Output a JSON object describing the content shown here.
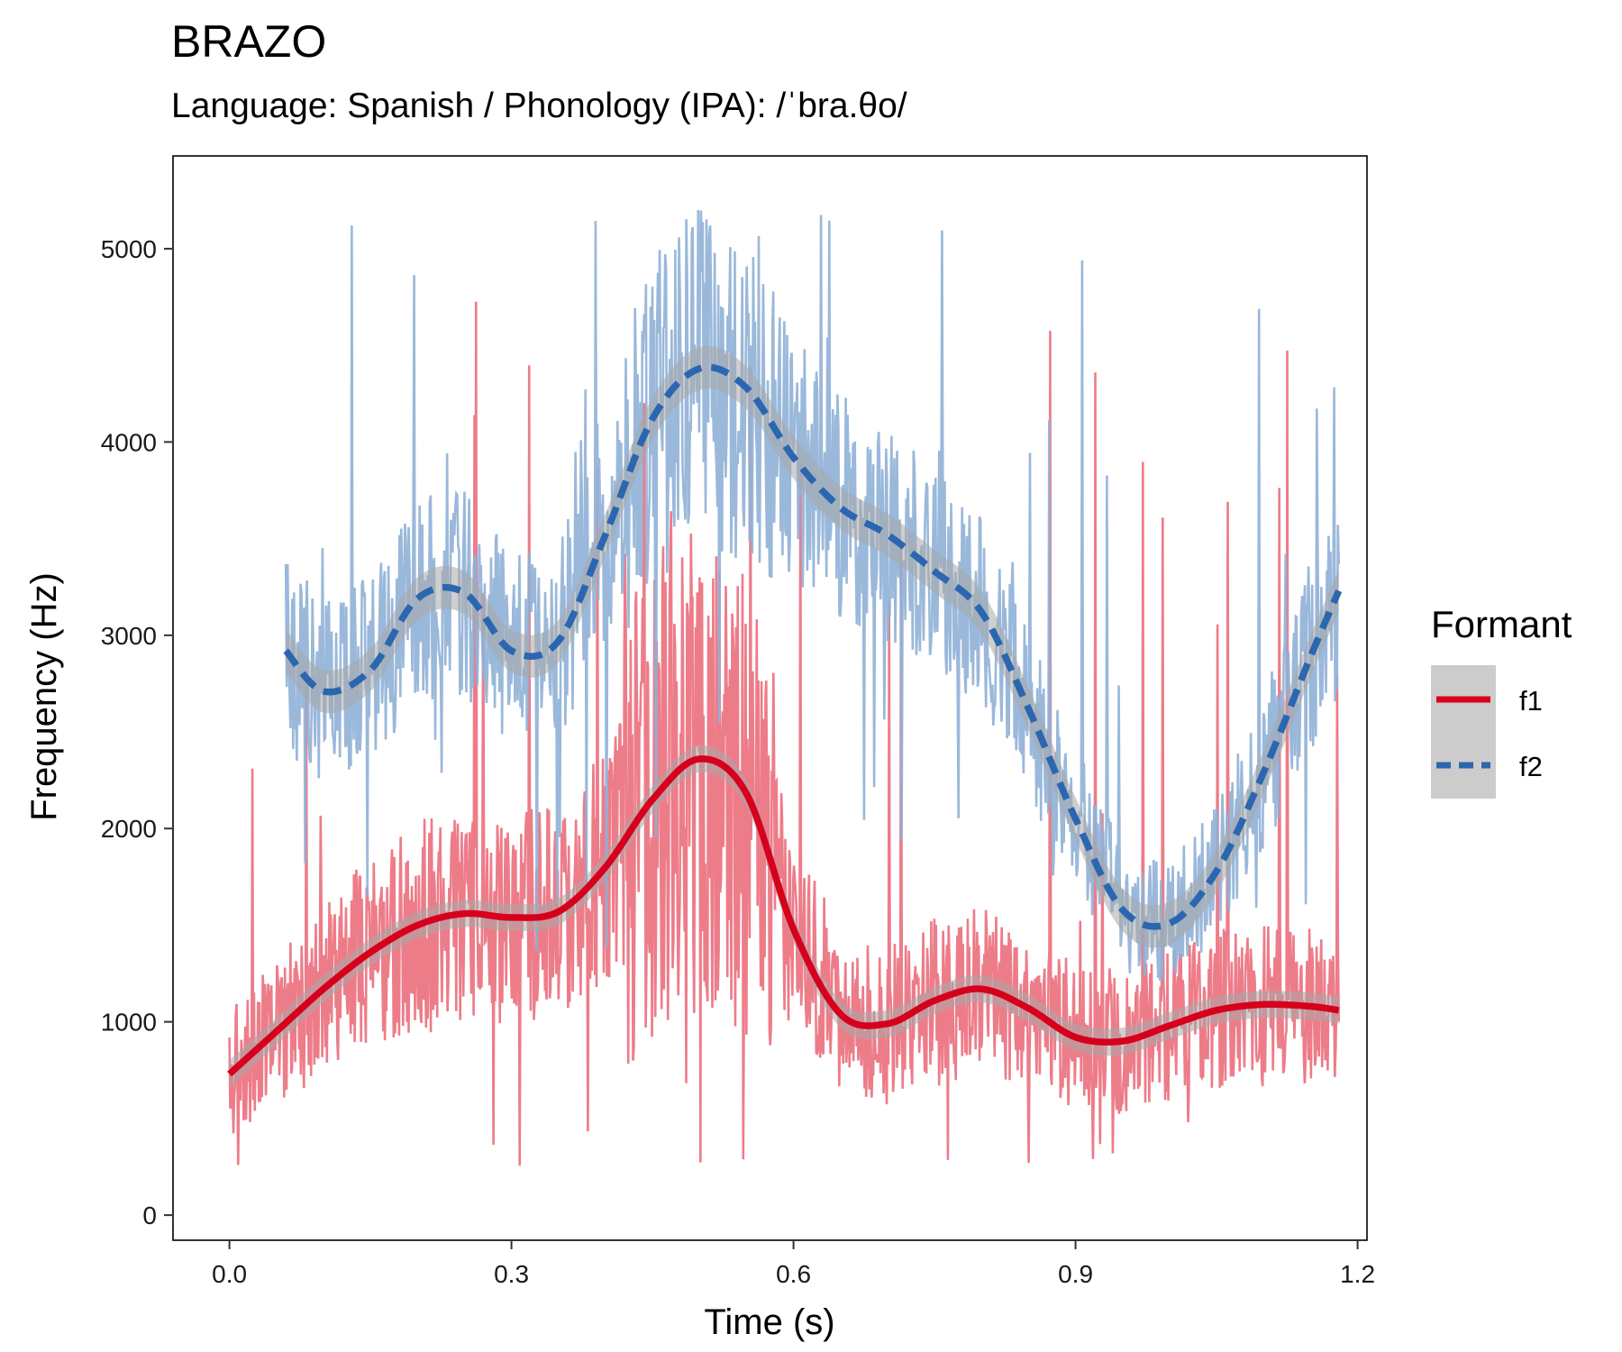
{
  "chart_data": {
    "type": "line",
    "title": "BRAZO",
    "subtitle": "Language: Spanish / Phonology (IPA): /ˈbra.θo/",
    "xlabel": "Time (s)",
    "ylabel": "Frequency (Hz)",
    "xlim": [
      -0.06,
      1.21
    ],
    "ylim": [
      -130,
      5480
    ],
    "x_ticks": [
      0.0,
      0.3,
      0.6,
      0.9,
      1.2
    ],
    "x_tick_labels": [
      "0.0",
      "0.3",
      "0.6",
      "0.9",
      "1.2"
    ],
    "y_ticks": [
      0,
      1000,
      2000,
      3000,
      4000,
      5000
    ],
    "y_tick_labels": [
      "0",
      "1000",
      "2000",
      "3000",
      "4000",
      "5000"
    ],
    "grid": false,
    "legend": {
      "title": "Formant",
      "position": "right",
      "entries": [
        "f1",
        "f2"
      ]
    },
    "series": [
      {
        "name": "f1",
        "color": "#d7001c",
        "raw_color": "#eb6e7c",
        "line_style": "solid",
        "x_range": [
          0.0,
          1.18
        ],
        "raw_summary": {
          "typical_min": 400,
          "typical_max": 2500,
          "peak_region": [
            0.42,
            0.58
          ],
          "peak_max": 4850
        },
        "smooth": {
          "x": [
            0.0,
            0.05,
            0.1,
            0.15,
            0.2,
            0.25,
            0.3,
            0.35,
            0.4,
            0.45,
            0.5,
            0.55,
            0.6,
            0.65,
            0.7,
            0.75,
            0.8,
            0.85,
            0.9,
            0.95,
            1.0,
            1.05,
            1.1,
            1.15,
            1.18
          ],
          "y": [
            730,
            950,
            1170,
            1360,
            1500,
            1560,
            1540,
            1570,
            1800,
            2150,
            2360,
            2180,
            1480,
            1040,
            990,
            1110,
            1170,
            1070,
            920,
            900,
            980,
            1060,
            1090,
            1080,
            1060
          ]
        },
        "band_halfwidth": 70
      },
      {
        "name": "f2",
        "color": "#2b66b0",
        "raw_color": "#8fb0d6",
        "line_style": "dashed",
        "x_range": [
          0.06,
          1.18
        ],
        "raw_summary": {
          "typical_min": 2100,
          "typical_max": 4800,
          "peak_region": [
            0.42,
            0.58
          ],
          "peak_max": 5200
        },
        "smooth": {
          "x": [
            0.06,
            0.1,
            0.15,
            0.2,
            0.25,
            0.3,
            0.35,
            0.4,
            0.45,
            0.5,
            0.55,
            0.6,
            0.65,
            0.7,
            0.75,
            0.8,
            0.85,
            0.9,
            0.95,
            1.0,
            1.05,
            1.1,
            1.15,
            1.18
          ],
          "y": [
            2920,
            2710,
            2820,
            3190,
            3220,
            2920,
            2970,
            3520,
            4120,
            4380,
            4280,
            3920,
            3660,
            3520,
            3330,
            3120,
            2620,
            2050,
            1580,
            1510,
            1780,
            2290,
            2890,
            3230
          ]
        },
        "band_halfwidth": 110
      }
    ]
  }
}
